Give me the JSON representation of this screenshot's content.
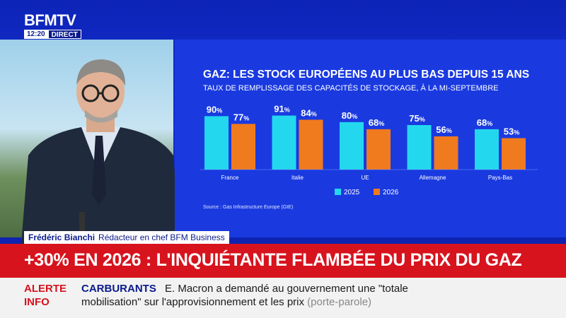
{
  "channel": {
    "logo": "BFMTV",
    "time": "12:20",
    "live": "DIRECT"
  },
  "chart_data": {
    "type": "bar",
    "title": "GAZ: LES STOCK EUROPÉENS AU PLUS BAS DEPUIS 15 ANS",
    "subtitle": "TAUX DE REMPLISSAGE DES CAPACITÉS DE STOCKAGE, À LA MI-SEPTEMBRE",
    "categories": [
      "France",
      "Italie",
      "UE",
      "Allemagne",
      "Pays-Bas"
    ],
    "series": [
      {
        "name": "2025",
        "values": [
          90,
          91,
          80,
          75,
          68
        ],
        "color": "#23d8ee"
      },
      {
        "name": "2026",
        "values": [
          77,
          84,
          68,
          56,
          53
        ],
        "color": "#f07a1e"
      }
    ],
    "value_suffix": "%",
    "ylim": [
      0,
      100
    ],
    "legend": "bottom-center",
    "source": "Source : Gas Infrastructure Europe (GIE)"
  },
  "lower_third": {
    "name": "Frédéric Bianchi",
    "role": "Rédacteur en chef BFM Business",
    "headline": "+30% EN 2026 : L'INQUIÉTANTE FLAMBÉE DU PRIX DU GAZ"
  },
  "ticker": {
    "alert_line1": "ALERTE",
    "alert_line2": "INFO",
    "topic": "CARBURANTS",
    "text_line1": "E. Macron a demandé au gouvernement une \"totale",
    "text_line2": "mobilisation\" sur l'approvisionnement et les prix",
    "attribution": "(porte-parole)"
  }
}
